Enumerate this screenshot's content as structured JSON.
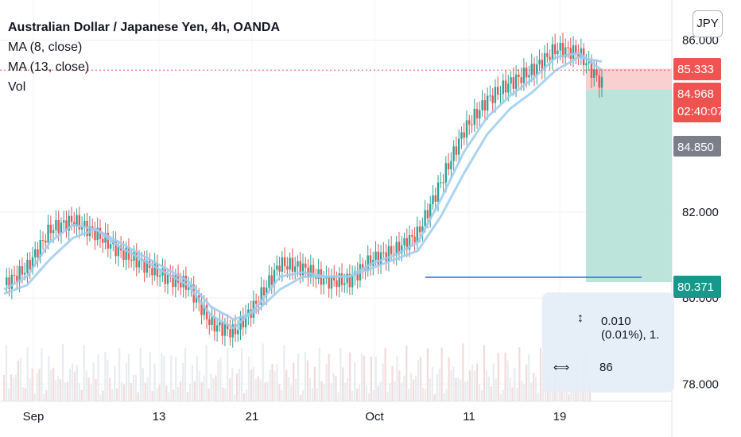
{
  "header": {
    "title": "Australian Dollar / Japanese Yen, 4h, OANDA",
    "ma1": "MA (8, close)",
    "ma2": "MA (13, close)",
    "vol": "Vol",
    "currency_button": "JPY"
  },
  "price_labels": {
    "tp": "85.333",
    "last": "84.968",
    "countdown": "02:40:07",
    "ma": "84.850",
    "sl": "80.371"
  },
  "stats": {
    "line1": "0.010 (0.01%), 1.",
    "line2": "86"
  },
  "colors": {
    "up": "#26a69a",
    "down": "#ef5350",
    "ma": "#9cccf0",
    "trend_line": "#2962ff",
    "target_zone": "#b2dfd5",
    "stop_zone": "#f8c7c7",
    "last_price_line": "#ef5350"
  },
  "chart_data": {
    "type": "candlestick",
    "title": "Australian Dollar / Japanese Yen, 4h, OANDA",
    "x_tick_labels": [
      "Sep",
      "13",
      "21",
      "Oct",
      "11",
      "19"
    ],
    "y_tick_labels": [
      "86.000",
      "82.000",
      "80.000",
      "78.000"
    ],
    "y_ticks": [
      86,
      82,
      80,
      78
    ],
    "ylim": [
      77.6,
      86.6
    ],
    "series": [
      {
        "name": "AUD/JPY close",
        "style": "candles",
        "color": "#26a69a",
        "x": [
          "Sep 1",
          "Sep 3",
          "Sep 5",
          "Sep 7",
          "Sep 9",
          "Sep 11",
          "Sep 13",
          "Sep 15",
          "Sep 17",
          "Sep 19",
          "Sep 21",
          "Sep 23",
          "Sep 25",
          "Sep 27",
          "Sep 29",
          "Oct 1",
          "Oct 3",
          "Oct 5",
          "Oct 7",
          "Oct 9",
          "Oct 11",
          "Oct 13",
          "Oct 15",
          "Oct 17",
          "Oct 19",
          "Oct 21",
          "Oct 22"
        ],
        "values": [
          80.3,
          80.7,
          81.6,
          81.8,
          81.5,
          81.1,
          80.8,
          80.5,
          80.3,
          79.4,
          79.2,
          79.9,
          80.8,
          80.7,
          80.4,
          80.4,
          80.9,
          81.1,
          81.5,
          82.7,
          83.9,
          84.6,
          85.0,
          85.3,
          85.8,
          85.7,
          84.97
        ]
      },
      {
        "name": "MA (8, close)",
        "color": "#9cccf0",
        "values": [
          80.2,
          80.5,
          81.3,
          81.7,
          81.6,
          81.2,
          80.9,
          80.6,
          80.3,
          79.6,
          79.3,
          79.8,
          80.5,
          80.6,
          80.5,
          80.5,
          80.8,
          81.0,
          81.3,
          82.3,
          83.4,
          84.2,
          84.7,
          85.1,
          85.6,
          85.7,
          85.3
        ]
      },
      {
        "name": "MA (13, close)",
        "color": "#9cccf0",
        "values": [
          80.1,
          80.3,
          80.9,
          81.4,
          81.6,
          81.3,
          81.0,
          80.7,
          80.4,
          79.8,
          79.5,
          79.7,
          80.2,
          80.5,
          80.5,
          80.5,
          80.7,
          80.9,
          81.1,
          81.9,
          82.9,
          83.8,
          84.4,
          84.8,
          85.3,
          85.6,
          85.5
        ]
      }
    ],
    "levels": {
      "take_profit": 85.333,
      "last_price": 84.968,
      "moving_average": 84.85,
      "stop_level": 80.371
    },
    "grid": true
  }
}
